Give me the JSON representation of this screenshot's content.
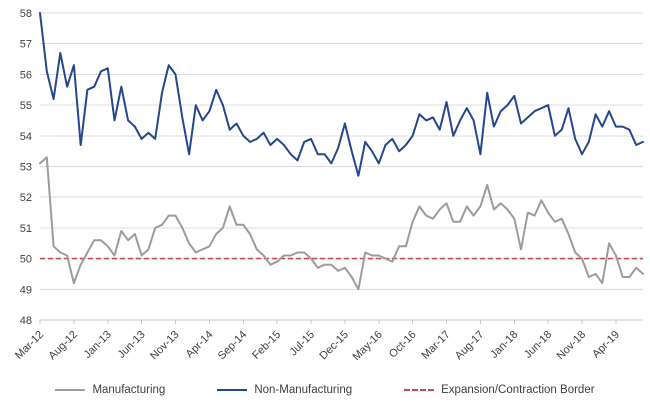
{
  "legend": {
    "manufacturing": "Manufacturing",
    "non_manufacturing": "Non-Manufacturing",
    "border": "Expansion/Contraction Border"
  },
  "colors": {
    "manufacturing": "#9c9c9c",
    "non_manufacturing": "#24478f",
    "border": "#c0504d",
    "grid": "#dcdcdc",
    "axis_line": "#c8c8c8",
    "axis_text": "#404040"
  },
  "chart_data": {
    "type": "line",
    "ylim": [
      48,
      58
    ],
    "y_ticks": [
      48,
      49,
      50,
      51,
      52,
      53,
      54,
      55,
      56,
      57,
      58
    ],
    "x_tick_every": 5,
    "x_tick_labels": [
      "Mar-12",
      "Aug-12",
      "Jan-13",
      "Jun-13",
      "Nov-13",
      "Apr-14",
      "Sep-14",
      "Feb-15",
      "Jul-15",
      "Dec-15",
      "May-16",
      "Oct-16",
      "Mar-17",
      "Aug-17",
      "Jan-18",
      "Jun-18",
      "Nov-18",
      "Apr-19"
    ],
    "x_label_rotation": 45,
    "grid": "horizontal",
    "legend_position": "bottom",
    "series": [
      {
        "name": "Manufacturing",
        "values": [
          53.1,
          53.3,
          50.4,
          50.2,
          50.1,
          49.2,
          49.8,
          50.2,
          50.6,
          50.6,
          50.4,
          50.1,
          50.9,
          50.6,
          50.8,
          50.1,
          50.3,
          51.0,
          51.1,
          51.4,
          51.4,
          51.0,
          50.5,
          50.2,
          50.3,
          50.4,
          50.8,
          51.0,
          51.7,
          51.1,
          51.1,
          50.8,
          50.3,
          50.1,
          49.8,
          49.9,
          50.1,
          50.1,
          50.2,
          50.2,
          50.0,
          49.7,
          49.8,
          49.8,
          49.6,
          49.7,
          49.4,
          49.0,
          50.2,
          50.1,
          50.1,
          50.0,
          49.9,
          50.4,
          50.4,
          51.2,
          51.7,
          51.4,
          51.3,
          51.6,
          51.8,
          51.2,
          51.2,
          51.7,
          51.4,
          51.7,
          52.4,
          51.6,
          51.8,
          51.6,
          51.3,
          50.3,
          51.5,
          51.4,
          51.9,
          51.5,
          51.2,
          51.3,
          50.8,
          50.2,
          50.0,
          49.4,
          49.5,
          49.2,
          50.5,
          50.1,
          49.4,
          49.4,
          49.7,
          49.5
        ]
      },
      {
        "name": "Non-Manufacturing",
        "values": [
          58.0,
          56.1,
          55.2,
          56.7,
          55.6,
          56.3,
          53.7,
          55.5,
          55.6,
          56.1,
          56.2,
          54.5,
          55.6,
          54.5,
          54.3,
          53.9,
          54.1,
          53.9,
          55.4,
          56.3,
          56.0,
          54.6,
          53.4,
          55.0,
          54.5,
          54.8,
          55.5,
          55.0,
          54.2,
          54.4,
          54.0,
          53.8,
          53.9,
          54.1,
          53.7,
          53.9,
          53.7,
          53.4,
          53.2,
          53.8,
          53.9,
          53.4,
          53.4,
          53.1,
          53.6,
          54.4,
          53.5,
          52.7,
          53.8,
          53.5,
          53.1,
          53.7,
          53.9,
          53.5,
          53.7,
          54.0,
          54.7,
          54.5,
          54.6,
          54.2,
          55.1,
          54.0,
          54.5,
          54.9,
          54.5,
          53.4,
          55.4,
          54.3,
          54.8,
          55.0,
          55.3,
          54.4,
          54.6,
          54.8,
          54.9,
          55.0,
          54.0,
          54.2,
          54.9,
          53.9,
          53.4,
          53.8,
          54.7,
          54.3,
          54.8,
          54.3,
          54.3,
          54.2,
          53.7,
          53.8
        ]
      }
    ],
    "reference_line": {
      "name": "Expansion/Contraction Border",
      "value": 50
    }
  }
}
